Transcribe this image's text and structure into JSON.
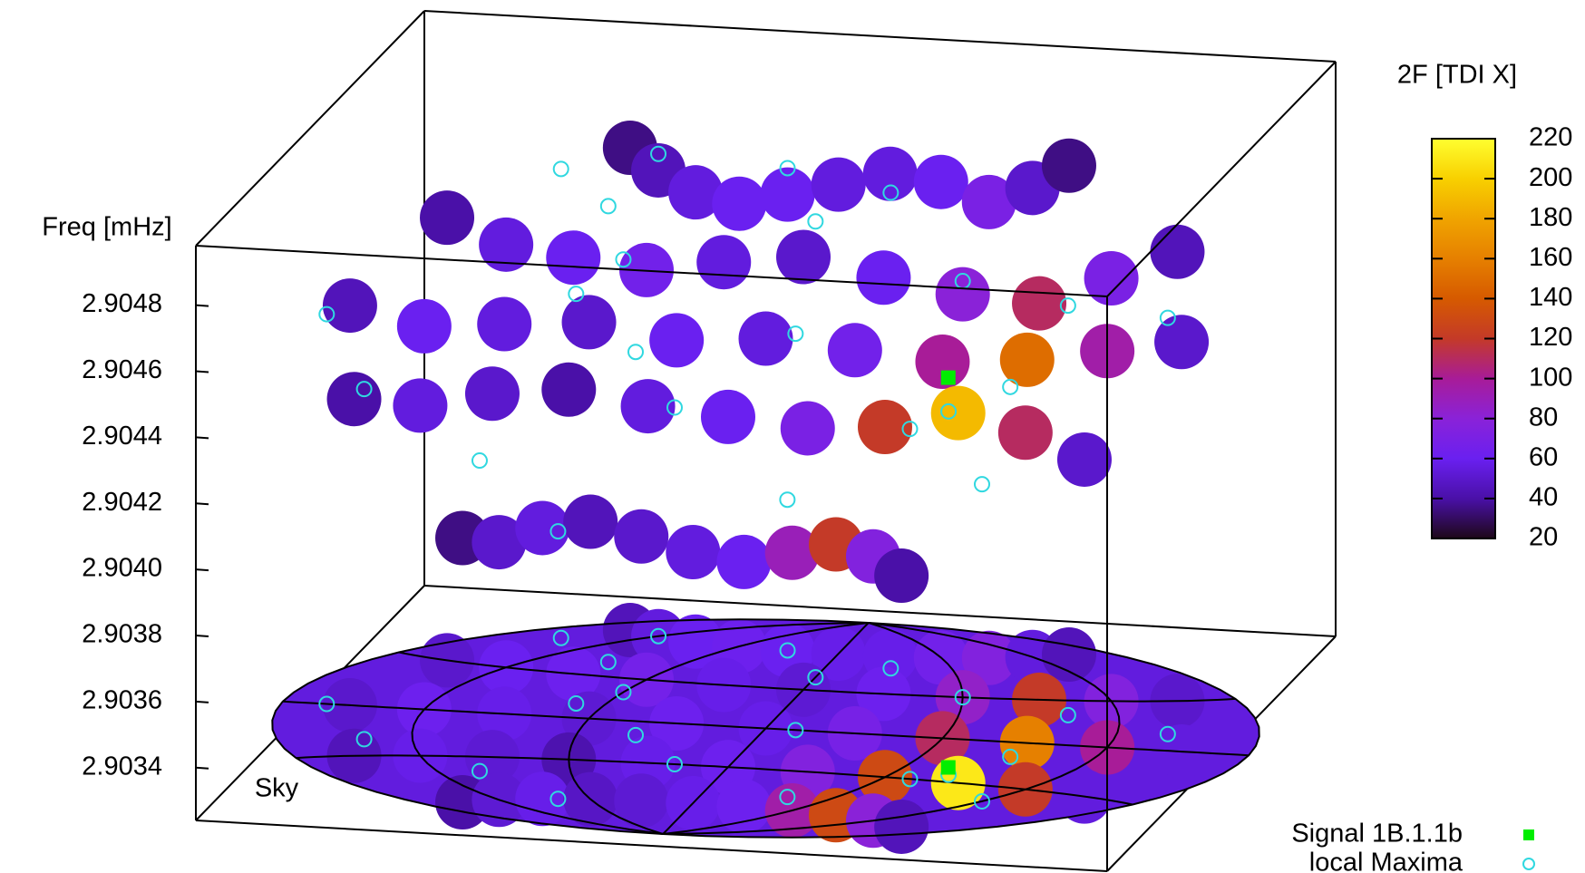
{
  "chart_data": {
    "type": "scatter3d",
    "zlabel": "Freq [mHz]",
    "zlim": [
      2.90324,
      2.90498
    ],
    "zticks": [
      2.9048,
      2.9046,
      2.9044,
      2.9042,
      {
        "value": 2.904,
        "label": "2.9040"
      },
      2.9038,
      2.9036,
      2.9034
    ],
    "colorbar": {
      "label": "2F [TDI X]",
      "lim": [
        20,
        220
      ],
      "ticks": [
        20,
        40,
        60,
        80,
        100,
        120,
        140,
        160,
        180,
        200,
        220
      ],
      "colormap": [
        "#1e0818",
        "#4a10a8",
        "#6a20f0",
        "#8a22d8",
        "#a81c98",
        "#c43a28",
        "#d65a00",
        "#e68000",
        "#f0a400",
        "#f8d000",
        "#ffff30"
      ]
    },
    "cloud": {
      "x": [
        -150,
        -120,
        -90,
        -60,
        -30,
        0,
        30,
        60,
        90,
        120,
        150,
        -150,
        -120,
        -90,
        -60,
        -30,
        0,
        30,
        60,
        90,
        120,
        150,
        -150,
        -120,
        -90,
        -60,
        -30,
        0,
        30,
        60,
        90,
        120,
        150,
        -150,
        -120,
        -90,
        -60,
        -30,
        0,
        30,
        60,
        90,
        120,
        150,
        -150,
        -120,
        -90,
        -60,
        -30,
        0,
        30,
        60,
        90,
        120,
        150
      ],
      "y": [
        60,
        60,
        60,
        60,
        60,
        60,
        60,
        60,
        60,
        60,
        60,
        30,
        30,
        30,
        30,
        30,
        30,
        30,
        30,
        30,
        30,
        30,
        0,
        0,
        0,
        0,
        0,
        0,
        0,
        0,
        0,
        0,
        0,
        -30,
        -30,
        -30,
        -30,
        -30,
        -30,
        -30,
        -30,
        -30,
        -30,
        -30,
        -60,
        -60,
        -60,
        -60,
        -60,
        -60,
        -60,
        -60,
        -60,
        -60,
        -60
      ],
      "z": [
        2.9047,
        2.90465,
        2.9046,
        2.90458,
        2.90462,
        2.90466,
        2.9047,
        2.90468,
        2.90462,
        2.90466,
        2.90472,
        2.90458,
        2.90452,
        2.9045,
        2.90448,
        2.90452,
        2.90455,
        2.9045,
        2.90446,
        2.90444,
        2.90452,
        2.9046,
        2.90445,
        2.9044,
        2.90442,
        2.90444,
        2.9044,
        2.90442,
        2.9044,
        2.90438,
        2.9044,
        2.90444,
        2.90448,
        2.90432,
        2.9043,
        2.90434,
        2.90436,
        2.90432,
        2.9043,
        2.90428,
        2.9043,
        2.90436,
        2.90432,
        2.90426,
        2.90404,
        2.90402,
        2.90406,
        2.90408,
        2.90404,
        2.904,
        2.90398,
        2.90402,
        2.90406,
        2.90404,
        2.904
      ],
      "values": [
        35,
        45,
        55,
        60,
        60,
        55,
        55,
        60,
        70,
        50,
        35,
        40,
        55,
        60,
        65,
        55,
        50,
        60,
        80,
        110,
        70,
        45,
        45,
        60,
        55,
        50,
        60,
        55,
        65,
        100,
        150,
        95,
        50,
        40,
        55,
        50,
        40,
        55,
        60,
        70,
        120,
        190,
        110,
        50,
        35,
        50,
        55,
        45,
        50,
        55,
        60,
        90,
        120,
        75,
        40
      ]
    },
    "sky": {
      "label": "Sky",
      "x": [
        -150,
        -120,
        -90,
        -60,
        -30,
        0,
        30,
        60,
        90,
        120,
        150,
        -150,
        -120,
        -90,
        -60,
        -30,
        0,
        30,
        60,
        90,
        120,
        150,
        -150,
        -120,
        -90,
        -60,
        -30,
        0,
        30,
        60,
        90,
        120,
        150,
        -150,
        -120,
        -90,
        -60,
        -30,
        0,
        30,
        60,
        90,
        120,
        150,
        -150,
        -120,
        -90,
        -60,
        -30,
        0,
        30,
        60,
        90,
        120,
        150
      ],
      "y": [
        60,
        60,
        60,
        60,
        60,
        60,
        60,
        60,
        60,
        60,
        60,
        30,
        30,
        30,
        30,
        30,
        30,
        30,
        30,
        30,
        30,
        30,
        0,
        0,
        0,
        0,
        0,
        0,
        0,
        0,
        0,
        0,
        0,
        -30,
        -30,
        -30,
        -30,
        -30,
        -30,
        -30,
        -30,
        -30,
        -30,
        -30,
        -60,
        -60,
        -60,
        -60,
        -60,
        -60,
        -60,
        -60,
        -60,
        -60,
        -60
      ],
      "values": [
        45,
        55,
        60,
        62,
        60,
        58,
        58,
        65,
        75,
        55,
        45,
        50,
        60,
        62,
        66,
        58,
        52,
        62,
        85,
        120,
        75,
        50,
        50,
        62,
        58,
        52,
        62,
        58,
        68,
        110,
        160,
        100,
        55,
        45,
        58,
        52,
        42,
        58,
        62,
        75,
        130,
        210,
        120,
        55,
        40,
        52,
        58,
        48,
        52,
        58,
        62,
        95,
        130,
        80,
        45
      ]
    },
    "series": [
      {
        "name": "Signal 1B.1.1b",
        "color": "#00ee00",
        "x": [
          75
        ],
        "y": [
          -20
        ],
        "z": [
          2.90442
        ]
      },
      {
        "name": "local Maxima",
        "color": "#30d8e0",
        "x": [
          -150,
          -120,
          -90,
          -60,
          -30,
          0,
          30,
          60,
          90,
          120,
          -140,
          -100,
          -70,
          -40,
          -20,
          10,
          40,
          100,
          140,
          -160,
          70,
          80,
          -80
        ],
        "y": [
          50,
          60,
          40,
          20,
          60,
          40,
          50,
          30,
          -10,
          -40,
          -20,
          -40,
          10,
          -10,
          -30,
          0,
          -50,
          20,
          10,
          0,
          -30,
          -25,
          -60
        ],
        "z": [
          2.90466,
          2.9047,
          2.90462,
          2.90455,
          2.9047,
          2.90462,
          2.90468,
          2.9045,
          2.90436,
          2.9042,
          2.9043,
          2.90418,
          2.90448,
          2.9044,
          2.90432,
          2.90444,
          2.90414,
          2.90448,
          2.9045,
          2.90442,
          2.9043,
          2.90434,
          2.90405
        ]
      }
    ]
  }
}
